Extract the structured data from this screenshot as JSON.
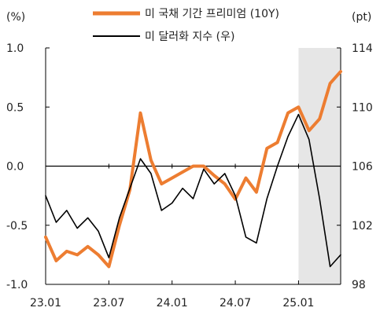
{
  "chart_data": {
    "type": "line",
    "left_axis_unit": "(%)",
    "right_axis_unit": "(pt)",
    "x_ticks": [
      "23.01",
      "23.07",
      "24.01",
      "24.07",
      "25.01"
    ],
    "x_range": [
      "2023-01",
      "2025-05"
    ],
    "left_ticks": [
      "1.0",
      "0.5",
      "0.0",
      "-0.5",
      "-1.0"
    ],
    "right_ticks": [
      "114",
      "110",
      "106",
      "102",
      "98"
    ],
    "ylim_left": [
      -1.0,
      1.0
    ],
    "ylim_right": [
      98,
      114
    ],
    "shaded_region": {
      "from": "2025-01",
      "to": "2025-05",
      "color": "#e6e6e6"
    },
    "zero_line": true,
    "series": [
      {
        "name": "미 국채 기간 프리미엄 (10Y)",
        "axis": "left",
        "color": "#ed7d31",
        "x": [
          "2023-01",
          "2023-02",
          "2023-03",
          "2023-04",
          "2023-05",
          "2023-06",
          "2023-07",
          "2023-08",
          "2023-09",
          "2023-10",
          "2023-11",
          "2023-12",
          "2024-01",
          "2024-02",
          "2024-03",
          "2024-04",
          "2024-05",
          "2024-06",
          "2024-07",
          "2024-08",
          "2024-09",
          "2024-10",
          "2024-11",
          "2024-12",
          "2025-01",
          "2025-02",
          "2025-03",
          "2025-04",
          "2025-05"
        ],
        "values": [
          -0.6,
          -0.8,
          -0.72,
          -0.75,
          -0.68,
          -0.75,
          -0.85,
          -0.5,
          -0.2,
          0.45,
          0.05,
          -0.15,
          -0.1,
          -0.05,
          0.0,
          0.0,
          -0.08,
          -0.15,
          -0.28,
          -0.1,
          -0.22,
          0.15,
          0.2,
          0.45,
          0.5,
          0.3,
          0.4,
          0.7,
          0.8
        ]
      },
      {
        "name": "미 달러화 지수 (우)",
        "axis": "right",
        "color": "#000000",
        "x": [
          "2023-01",
          "2023-02",
          "2023-03",
          "2023-04",
          "2023-05",
          "2023-06",
          "2023-07",
          "2023-08",
          "2023-09",
          "2023-10",
          "2023-11",
          "2023-12",
          "2024-01",
          "2024-02",
          "2024-03",
          "2024-04",
          "2024-05",
          "2024-06",
          "2024-07",
          "2024-08",
          "2024-09",
          "2024-10",
          "2024-11",
          "2024-12",
          "2025-01",
          "2025-02",
          "2025-03",
          "2025-04",
          "2025-05"
        ],
        "values": [
          104.0,
          102.2,
          103.0,
          101.8,
          102.5,
          101.6,
          99.8,
          102.5,
          104.5,
          106.5,
          105.5,
          103.0,
          103.5,
          104.5,
          103.8,
          105.8,
          104.8,
          105.5,
          104.0,
          101.2,
          100.8,
          103.8,
          106.0,
          108.0,
          109.5,
          107.8,
          103.8,
          99.2,
          100.0
        ]
      }
    ]
  }
}
